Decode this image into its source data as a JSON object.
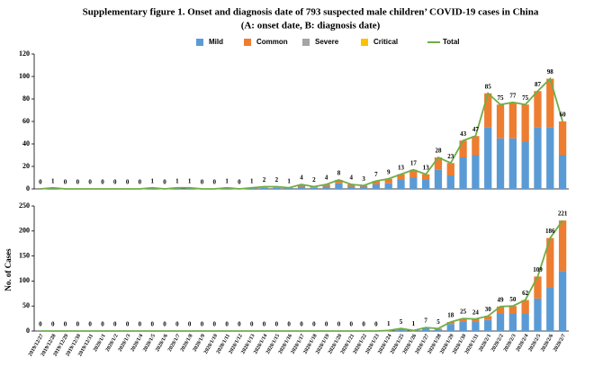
{
  "chart_data": [
    {
      "type": "bar",
      "stacked": true,
      "title": "Supplementary figure 1. Onset and diagnosis date of 793 suspected male children’ COVID-19 cases in China",
      "subtitle": "(A: onset date, B: diagnosis date)",
      "ylim": [
        0,
        120
      ],
      "yticks": [
        0,
        20,
        40,
        60,
        80,
        100,
        120
      ],
      "series": [
        {
          "name": "Mild",
          "color": "#5b9bd5",
          "values": [
            0,
            1,
            0,
            0,
            0,
            0,
            0,
            0,
            0,
            1,
            0,
            1,
            1,
            0,
            0,
            1,
            0,
            1,
            1,
            1,
            1,
            2,
            1,
            2,
            5,
            2,
            2,
            4,
            5,
            8,
            10,
            8,
            17,
            12,
            28,
            30,
            55,
            45,
            45,
            42,
            55,
            55,
            30
          ]
        },
        {
          "name": "Common",
          "color": "#ed7d31",
          "values": [
            0,
            0,
            0,
            0,
            0,
            0,
            0,
            0,
            0,
            0,
            0,
            0,
            0,
            0,
            0,
            0,
            0,
            0,
            1,
            1,
            0,
            2,
            1,
            2,
            3,
            2,
            1,
            3,
            4,
            5,
            7,
            5,
            11,
            11,
            15,
            17,
            30,
            30,
            32,
            33,
            32,
            43,
            30
          ]
        },
        {
          "name": "Severe",
          "color": "#a5a5a5",
          "values": [
            0,
            0,
            0,
            0,
            0,
            0,
            0,
            0,
            0,
            0,
            0,
            0,
            0,
            0,
            0,
            0,
            0,
            0,
            0,
            0,
            0,
            0,
            0,
            0,
            0,
            0,
            0,
            0,
            0,
            0,
            0,
            0,
            0,
            0,
            0,
            0,
            0,
            0,
            0,
            0,
            0,
            0,
            0
          ]
        },
        {
          "name": "Critical",
          "color": "#ffc000",
          "values": [
            0,
            0,
            0,
            0,
            0,
            0,
            0,
            0,
            0,
            0,
            0,
            0,
            0,
            0,
            0,
            0,
            0,
            0,
            0,
            0,
            0,
            0,
            0,
            0,
            0,
            0,
            0,
            0,
            0,
            0,
            0,
            0,
            0,
            0,
            0,
            0,
            0,
            0,
            0,
            0,
            0,
            0,
            0
          ]
        },
        {
          "name": "Total",
          "type": "line",
          "color": "#70ad47",
          "values": [
            0,
            1,
            0,
            0,
            0,
            0,
            0,
            0,
            0,
            1,
            0,
            1,
            1,
            0,
            0,
            1,
            0,
            1,
            2,
            2,
            1,
            4,
            2,
            4,
            8,
            4,
            3,
            7,
            9,
            13,
            17,
            13,
            28,
            23,
            43,
            47,
            85,
            75,
            77,
            75,
            87,
            98,
            60
          ]
        }
      ]
    },
    {
      "type": "bar",
      "stacked": true,
      "ylabel": "No. of Cases",
      "ylim": [
        0,
        250
      ],
      "yticks": [
        0,
        50,
        100,
        150,
        200,
        250
      ],
      "categories": [
        "2019/12/27",
        "2019/12/28",
        "2019/12/29",
        "2019/12/30",
        "2019/12/31",
        "2020/1/1",
        "2020/1/2",
        "2020/1/3",
        "2020/1/4",
        "2020/1/5",
        "2020/1/6",
        "2020/1/7",
        "2020/1/8",
        "2020/1/9",
        "2020/1/10",
        "2020/1/11",
        "2020/1/12",
        "2020/1/13",
        "2020/1/14",
        "2020/1/15",
        "2020/1/16",
        "2020/1/17",
        "2020/1/18",
        "2020/1/19",
        "2020/1/20",
        "2020/1/21",
        "2020/1/22",
        "2020/1/23",
        "2020/1/24",
        "2020/1/25",
        "2020/1/26",
        "2020/1/27",
        "2020/1/28",
        "2020/1/29",
        "2020/1/30",
        "2020/1/31",
        "2020/2/1",
        "2020/2/2",
        "2020/2/3",
        "2020/2/4",
        "2020/2/5",
        "2020/2/6",
        "2020/2/7"
      ],
      "series": [
        {
          "color": "#5b9bd5",
          "values": [
            0,
            0,
            0,
            0,
            0,
            0,
            0,
            0,
            0,
            0,
            0,
            0,
            0,
            0,
            0,
            0,
            0,
            0,
            0,
            0,
            0,
            0,
            0,
            0,
            0,
            0,
            0,
            0,
            1,
            4,
            1,
            6,
            4,
            14,
            19,
            18,
            22,
            35,
            35,
            35,
            65,
            88,
            120
          ]
        },
        {
          "color": "#ed7d31",
          "values": [
            0,
            0,
            0,
            0,
            0,
            0,
            0,
            0,
            0,
            0,
            0,
            0,
            0,
            0,
            0,
            0,
            0,
            0,
            0,
            0,
            0,
            0,
            0,
            0,
            0,
            0,
            0,
            0,
            0,
            1,
            0,
            1,
            1,
            4,
            6,
            6,
            8,
            14,
            15,
            27,
            44,
            98,
            101
          ]
        },
        {
          "color": "#a5a5a5",
          "values": [
            0,
            0,
            0,
            0,
            0,
            0,
            0,
            0,
            0,
            0,
            0,
            0,
            0,
            0,
            0,
            0,
            0,
            0,
            0,
            0,
            0,
            0,
            0,
            0,
            0,
            0,
            0,
            0,
            0,
            0,
            0,
            0,
            0,
            0,
            0,
            0,
            0,
            0,
            0,
            0,
            0,
            0,
            0
          ]
        },
        {
          "color": "#ffc000",
          "values": [
            0,
            0,
            0,
            0,
            0,
            0,
            0,
            0,
            0,
            0,
            0,
            0,
            0,
            0,
            0,
            0,
            0,
            0,
            0,
            0,
            0,
            0,
            0,
            0,
            0,
            0,
            0,
            0,
            0,
            0,
            0,
            0,
            0,
            0,
            0,
            0,
            0,
            0,
            0,
            0,
            0,
            0,
            0
          ]
        },
        {
          "type": "line",
          "color": "#70ad47",
          "values": [
            0,
            0,
            0,
            0,
            0,
            0,
            0,
            0,
            0,
            0,
            0,
            0,
            0,
            0,
            0,
            0,
            0,
            0,
            0,
            0,
            0,
            0,
            0,
            0,
            0,
            0,
            0,
            0,
            1,
            5,
            1,
            7,
            5,
            18,
            25,
            24,
            30,
            49,
            50,
            62,
            109,
            186,
            221
          ]
        }
      ]
    }
  ]
}
